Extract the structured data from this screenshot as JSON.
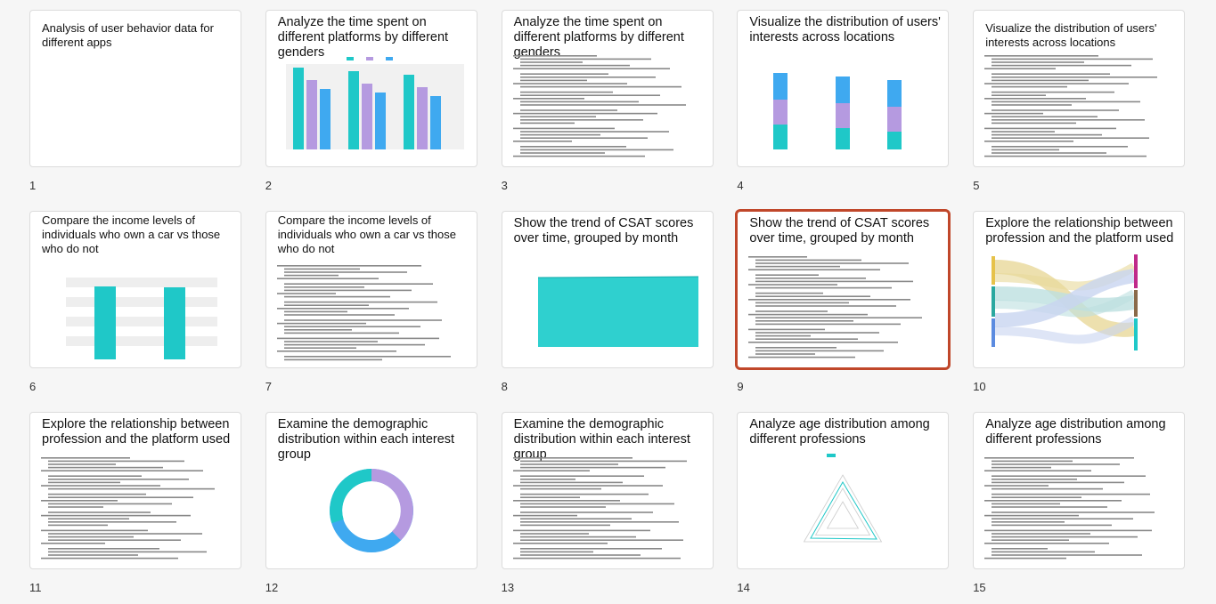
{
  "slides": [
    {
      "number": 1,
      "title": "Analysis of user behavior data for different apps"
    },
    {
      "number": 2,
      "title": "Analyze the time spent on different platforms by different genders"
    },
    {
      "number": 3,
      "title": "Analyze the time spent on different platforms by different genders"
    },
    {
      "number": 4,
      "title": "Visualize the distribution of users' interests across locations"
    },
    {
      "number": 5,
      "title": "Visualize the distribution of users' interests across locations"
    },
    {
      "number": 6,
      "title": "Compare the income levels of individuals who own a car vs those who do not"
    },
    {
      "number": 7,
      "title": "Compare the income levels of individuals who own a car vs those who do not"
    },
    {
      "number": 8,
      "title": "Show the trend of CSAT scores over time, grouped by month"
    },
    {
      "number": 9,
      "title": "Show the trend of CSAT scores over time, grouped by month"
    },
    {
      "number": 10,
      "title": "Explore the relationship between profession and the platform used"
    },
    {
      "number": 11,
      "title": "Explore the relationship between profession and the platform used"
    },
    {
      "number": 12,
      "title": "Examine the demographic distribution within each interest group"
    },
    {
      "number": 13,
      "title": "Examine the demographic distribution within each interest group"
    },
    {
      "number": 14,
      "title": "Analyze age distribution among different professions"
    },
    {
      "number": 15,
      "title": "Analyze age distribution among different professions"
    }
  ]
}
